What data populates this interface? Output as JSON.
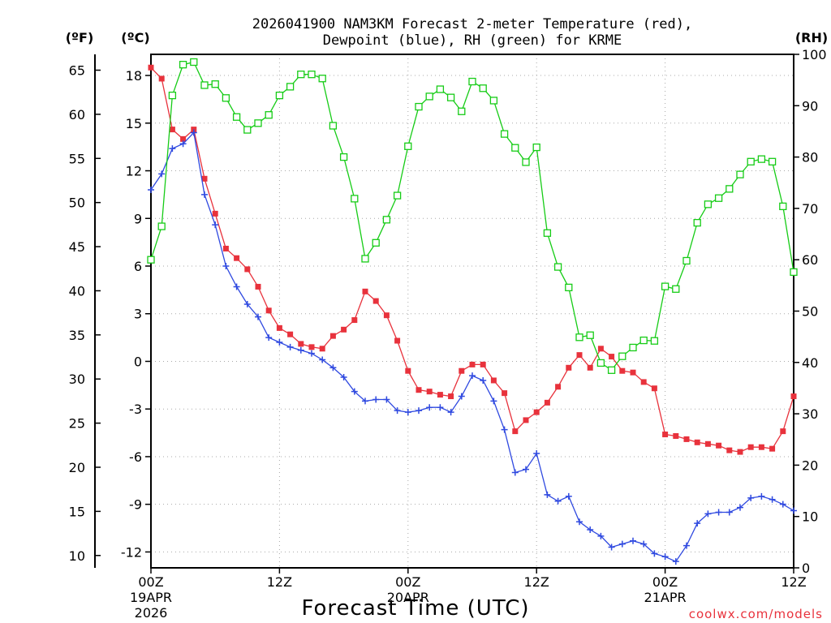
{
  "chart_data": {
    "type": "line",
    "title": "2026041900 NAM3KM Forecast 2-meter Temperature (red),",
    "title_line2": "Dewpoint (blue), RH (green) for KRME",
    "xlabel": "Forecast Time (UTC)",
    "watermark": "coolwx.com/models",
    "units": {
      "fahrenheit": "(ºF)",
      "celsius": "(ºC)",
      "rh": "(RH)"
    },
    "x_range_hours": [
      0,
      60
    ],
    "y_left_c_range": [
      -13,
      19.33
    ],
    "y_right_rh_range": [
      0,
      100
    ],
    "x_ticks": [
      {
        "hour": 0,
        "l1": "00Z",
        "l2": "19APR",
        "l3": "2026"
      },
      {
        "hour": 12,
        "l1": "12Z",
        "l2": "",
        "l3": ""
      },
      {
        "hour": 24,
        "l1": "00Z",
        "l2": "20APR",
        "l3": ""
      },
      {
        "hour": 36,
        "l1": "12Z",
        "l2": "",
        "l3": ""
      },
      {
        "hour": 48,
        "l1": "00Z",
        "l2": "21APR",
        "l3": ""
      },
      {
        "hour": 60,
        "l1": "12Z",
        "l2": "",
        "l3": ""
      }
    ],
    "celsius_ticks": [
      "18",
      "15",
      "12",
      "9",
      "6",
      "3",
      "0",
      "-3",
      "-6",
      "-9",
      "-12"
    ],
    "fahrenheit_ticks": [
      "65",
      "60",
      "55",
      "50",
      "45",
      "40",
      "35",
      "30",
      "25",
      "20",
      "15",
      "10"
    ],
    "rh_ticks": [
      "100",
      "90",
      "80",
      "70",
      "60",
      "50",
      "40",
      "30",
      "20",
      "10",
      "0"
    ],
    "series": [
      {
        "name": "2-meter Temperature",
        "unit": "C",
        "color": "#e8323c",
        "marker": "filled-square",
        "values": [
          18.5,
          17.8,
          14.6,
          14.0,
          14.6,
          11.5,
          9.3,
          7.1,
          6.5,
          5.8,
          4.7,
          3.2,
          2.1,
          1.7,
          1.1,
          0.9,
          0.8,
          1.6,
          2.0,
          2.6,
          4.4,
          3.8,
          2.9,
          1.3,
          -0.6,
          -1.8,
          -1.9,
          -2.1,
          -2.2,
          -0.6,
          -0.2,
          -0.2,
          -1.2,
          -2.0,
          -4.4,
          -3.7,
          -3.2,
          -2.6,
          -1.6,
          -0.4,
          0.4,
          -0.4,
          0.8,
          0.3,
          -0.6,
          -0.7,
          -1.3,
          -1.7,
          -4.6,
          -4.7,
          -4.9,
          -5.1,
          -5.2,
          -5.3,
          -5.6,
          -5.7,
          -5.4,
          -5.4,
          -5.5,
          -4.4,
          -2.2
        ]
      },
      {
        "name": "2-meter Dewpoint",
        "unit": "C",
        "color": "#2f49e0",
        "marker": "plus",
        "values": [
          10.8,
          11.8,
          13.4,
          13.7,
          14.4,
          10.5,
          8.6,
          6.0,
          4.7,
          3.6,
          2.8,
          1.5,
          1.2,
          0.9,
          0.7,
          0.5,
          0.1,
          -0.4,
          -1.0,
          -1.9,
          -2.5,
          -2.4,
          -2.4,
          -3.1,
          -3.2,
          -3.1,
          -2.9,
          -2.9,
          -3.2,
          -2.2,
          -0.9,
          -1.2,
          -2.5,
          -4.3,
          -7.0,
          -6.8,
          -5.8,
          -8.4,
          -8.8,
          -8.5,
          -10.1,
          -10.6,
          -11.0,
          -11.7,
          -11.5,
          -11.3,
          -11.5,
          -12.1,
          -12.3,
          -12.6,
          -11.6,
          -10.2,
          -9.6,
          -9.5,
          -9.5,
          -9.2,
          -8.6,
          -8.5,
          -8.7,
          -9.0,
          -9.4
        ]
      },
      {
        "name": "Relative Humidity",
        "unit": "%",
        "color": "#16cc16",
        "marker": "open-square",
        "values": [
          60,
          66.5,
          92,
          98,
          98.5,
          94,
          94.2,
          91.5,
          87.8,
          85.3,
          86.6,
          88.2,
          92,
          93.7,
          96.1,
          96.1,
          95.3,
          86.1,
          80.0,
          71.9,
          60.2,
          63.3,
          67.8,
          72.5,
          82.1,
          89.8,
          91.8,
          93.2,
          91.6,
          88.9,
          94.7,
          93.4,
          91,
          84.5,
          81.8,
          79.0,
          81.9,
          65.2,
          58.6,
          54.6,
          44.9,
          45.3,
          39.9,
          38.5,
          41.2,
          42.9,
          44.3,
          44.2,
          54.8,
          54.3,
          59.8,
          67.2,
          70.8,
          72.0,
          73.8,
          76.6,
          79.1,
          79.6,
          79.1,
          70.4,
          57.6
        ]
      }
    ]
  }
}
